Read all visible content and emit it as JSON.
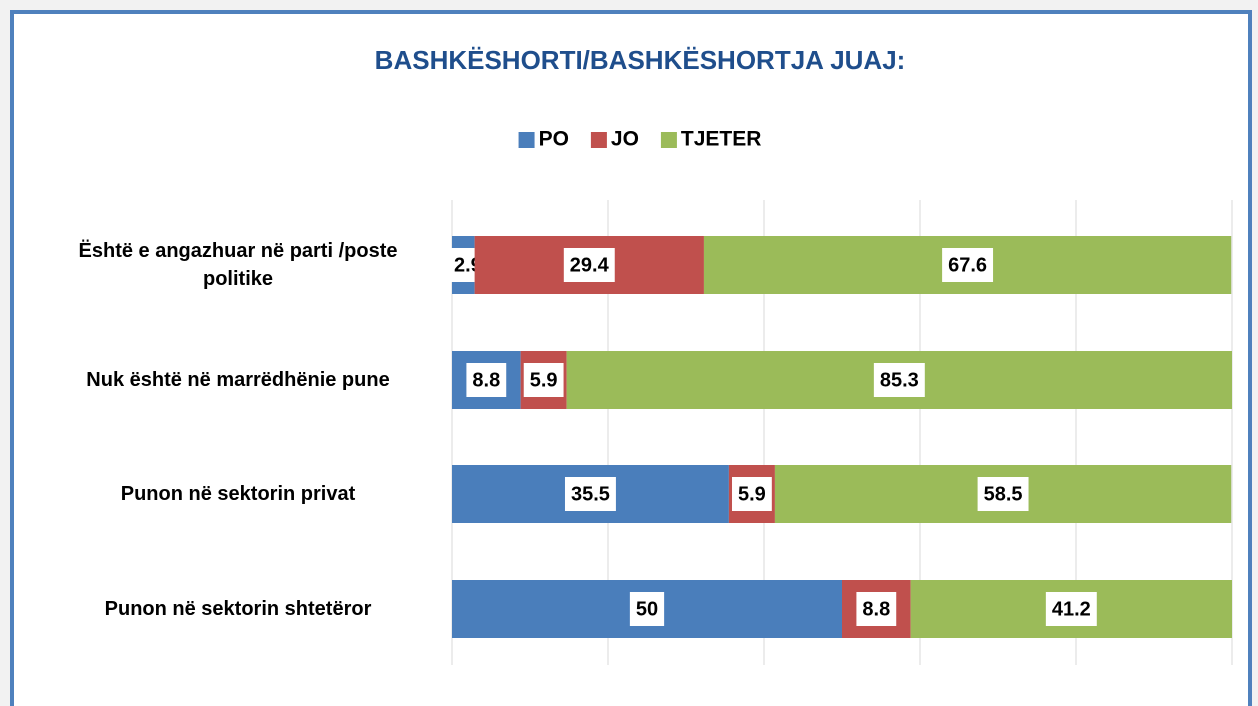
{
  "chart_data": {
    "type": "stacked_bar_horizontal",
    "title": "BASHKËSHORTI/BASHKËSHORTJA JUAJ:",
    "categories": [
      "Është e angazhuar në parti /poste politike",
      "Nuk është në marrëdhënie pune",
      "Punon në sektorin privat",
      "Punon në sektorin shtetëror"
    ],
    "series": [
      {
        "name": "PO",
        "color": "#4a7ebb",
        "values": [
          2.9,
          8.8,
          35.5,
          50
        ]
      },
      {
        "name": "JO",
        "color": "#c0504d",
        "values": [
          29.4,
          5.9,
          5.9,
          8.8
        ]
      },
      {
        "name": "TJETER",
        "color": "#9bbb59",
        "values": [
          67.6,
          85.3,
          58.5,
          41.2
        ]
      }
    ],
    "xlim": [
      0,
      100
    ],
    "xticks": [
      0,
      20,
      40,
      60,
      80,
      100
    ],
    "show_tick_labels": false,
    "grid": true,
    "legend": "top"
  }
}
